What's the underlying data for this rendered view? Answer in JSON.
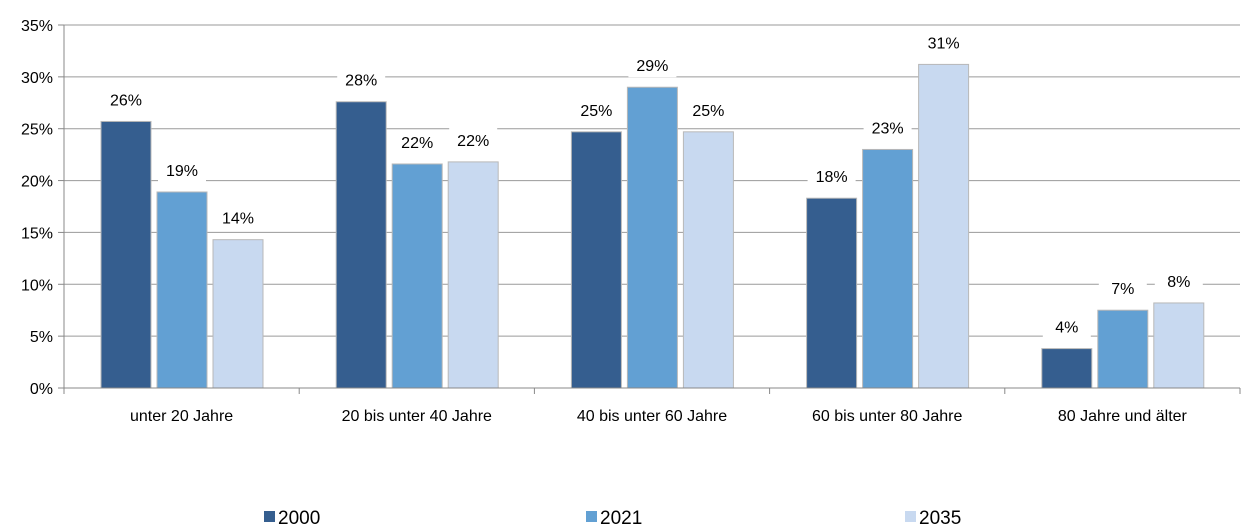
{
  "chart_data": {
    "type": "bar",
    "categories": [
      "unter 20 Jahre",
      "20 bis unter 40 Jahre",
      "40 bis unter 60 Jahre",
      "60 bis unter 80 Jahre",
      "80 Jahre und älter"
    ],
    "series": [
      {
        "name": "2000",
        "color": "#355e8f",
        "values": [
          25.7,
          27.6,
          24.7,
          18.3,
          3.8
        ],
        "labels": [
          "26%",
          "28%",
          "25%",
          "18%",
          "4%"
        ]
      },
      {
        "name": "2021",
        "color": "#62a0d3",
        "values": [
          18.9,
          21.6,
          29.0,
          23.0,
          7.5
        ],
        "labels": [
          "19%",
          "22%",
          "29%",
          "23%",
          "7%"
        ]
      },
      {
        "name": "2035",
        "color": "#c8d9f0",
        "values": [
          14.3,
          21.8,
          24.7,
          31.2,
          8.2
        ],
        "labels": [
          "14%",
          "22%",
          "25%",
          "31%",
          "8%"
        ]
      }
    ],
    "y_ticks": [
      "0%",
      "5%",
      "10%",
      "15%",
      "20%",
      "25%",
      "30%",
      "35%"
    ],
    "ylim": [
      0,
      35
    ],
    "grid": true,
    "legend": "bottom"
  }
}
